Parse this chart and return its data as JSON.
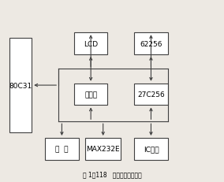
{
  "title": "图 1－118   终端机硬件结构图",
  "background_color": "#ede9e3",
  "line_color": "#404040",
  "box_facecolor": "#ffffff",
  "box_edgecolor": "#404040",
  "blocks": {
    "80C31": [
      0.04,
      0.27,
      0.1,
      0.52
    ],
    "LCD": [
      0.33,
      0.7,
      0.15,
      0.12
    ],
    "62256": [
      0.6,
      0.7,
      0.15,
      0.12
    ],
    "汉字库": [
      0.33,
      0.42,
      0.15,
      0.12
    ],
    "27C256": [
      0.6,
      0.42,
      0.15,
      0.12
    ],
    "键  盘": [
      0.2,
      0.12,
      0.15,
      0.12
    ],
    "MAX232E": [
      0.38,
      0.12,
      0.16,
      0.12
    ],
    "IC卡座": [
      0.6,
      0.12,
      0.15,
      0.12
    ]
  }
}
